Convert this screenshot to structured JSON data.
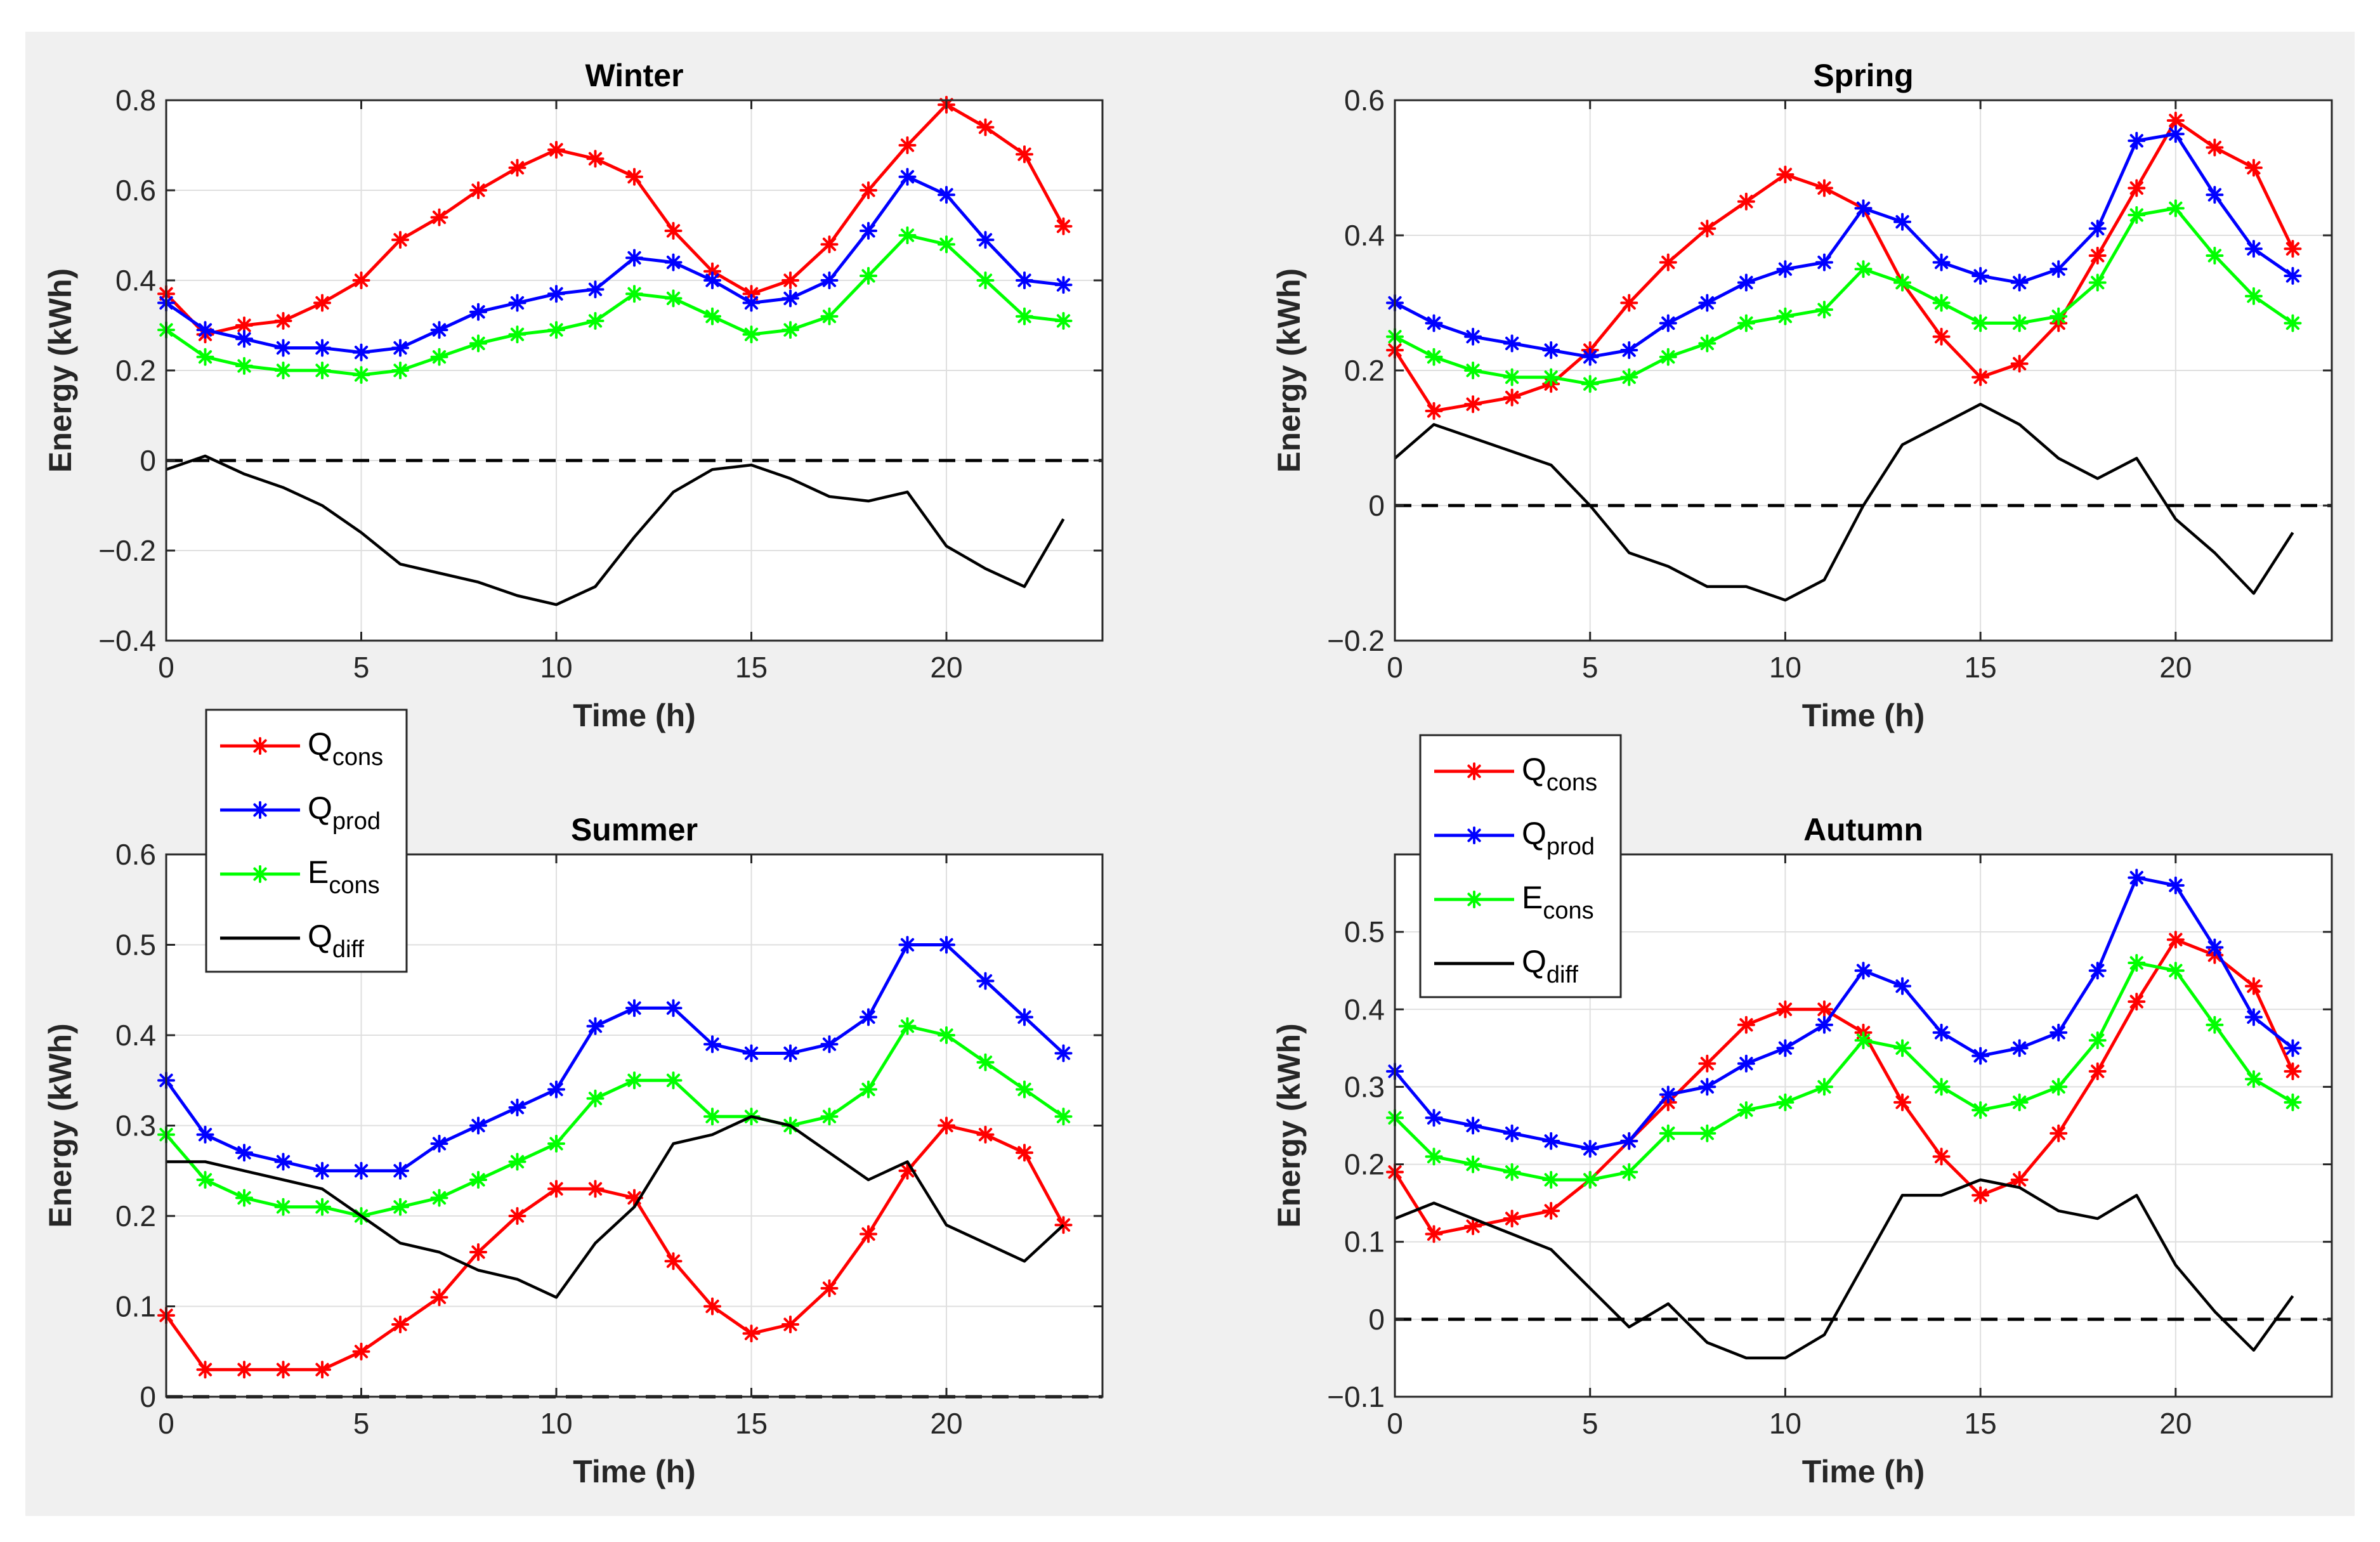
{
  "chart_data": [
    {
      "type": "line",
      "title": "Winter",
      "xlabel": "Time (h)",
      "ylabel": "Energy (kWh)",
      "xlim": [
        0,
        24
      ],
      "ylim": [
        -0.4,
        0.8
      ],
      "xticks": [
        0,
        5,
        10,
        15,
        20
      ],
      "yticks": [
        -0.4,
        -0.2,
        0,
        0.2,
        0.4,
        0.6,
        0.8
      ],
      "ytick_labels": [
        "−0.4",
        "−0.2",
        "0",
        "0.2",
        "0.4",
        "0.6",
        "0.8"
      ],
      "grid": true,
      "zero_line": true,
      "legend": null,
      "x": [
        0,
        1,
        2,
        3,
        4,
        5,
        6,
        7,
        8,
        9,
        10,
        11,
        12,
        13,
        14,
        15,
        16,
        17,
        18,
        19,
        20,
        21,
        22,
        23
      ],
      "series": [
        {
          "name": "Qcons",
          "color": "#ff0000",
          "marker": "asterisk",
          "values": [
            0.37,
            0.28,
            0.3,
            0.31,
            0.35,
            0.4,
            0.49,
            0.54,
            0.6,
            0.65,
            0.69,
            0.67,
            0.63,
            0.51,
            0.42,
            0.37,
            0.4,
            0.48,
            0.6,
            0.7,
            0.79,
            0.74,
            0.68,
            0.52
          ]
        },
        {
          "name": "Qprod",
          "color": "#0000ff",
          "marker": "asterisk",
          "values": [
            0.35,
            0.29,
            0.27,
            0.25,
            0.25,
            0.24,
            0.25,
            0.29,
            0.33,
            0.35,
            0.37,
            0.38,
            0.45,
            0.44,
            0.4,
            0.35,
            0.36,
            0.4,
            0.51,
            0.63,
            0.59,
            0.49,
            0.4,
            0.39
          ]
        },
        {
          "name": "Econs",
          "color": "#00ff00",
          "marker": "asterisk",
          "values": [
            0.29,
            0.23,
            0.21,
            0.2,
            0.2,
            0.19,
            0.2,
            0.23,
            0.26,
            0.28,
            0.29,
            0.31,
            0.37,
            0.36,
            0.32,
            0.28,
            0.29,
            0.32,
            0.41,
            0.5,
            0.48,
            0.4,
            0.32,
            0.31
          ]
        },
        {
          "name": "Qdiff",
          "color": "#000000",
          "marker": "none",
          "values": [
            -0.02,
            0.01,
            -0.03,
            -0.06,
            -0.1,
            -0.16,
            -0.23,
            -0.25,
            -0.27,
            -0.3,
            -0.32,
            -0.28,
            -0.17,
            -0.07,
            -0.02,
            -0.01,
            -0.04,
            -0.08,
            -0.09,
            -0.07,
            -0.19,
            -0.24,
            -0.28,
            -0.13
          ]
        }
      ]
    },
    {
      "type": "line",
      "title": "Spring",
      "xlabel": "Time (h)",
      "ylabel": "Energy (kWh)",
      "xlim": [
        0,
        24
      ],
      "ylim": [
        -0.2,
        0.6
      ],
      "xticks": [
        0,
        5,
        10,
        15,
        20
      ],
      "yticks": [
        -0.2,
        0,
        0.2,
        0.4,
        0.6
      ],
      "ytick_labels": [
        "−0.2",
        "0",
        "0.2",
        "0.4",
        "0.6"
      ],
      "grid": true,
      "zero_line": true,
      "legend": null,
      "x": [
        0,
        1,
        2,
        3,
        4,
        5,
        6,
        7,
        8,
        9,
        10,
        11,
        12,
        13,
        14,
        15,
        16,
        17,
        18,
        19,
        20,
        21,
        22,
        23
      ],
      "series": [
        {
          "name": "Qcons",
          "color": "#ff0000",
          "marker": "asterisk",
          "values": [
            0.23,
            0.14,
            0.15,
            0.16,
            0.18,
            0.23,
            0.3,
            0.36,
            0.41,
            0.45,
            0.49,
            0.47,
            0.44,
            0.33,
            0.25,
            0.19,
            0.21,
            0.27,
            0.37,
            0.47,
            0.57,
            0.53,
            0.5,
            0.38
          ]
        },
        {
          "name": "Qprod",
          "color": "#0000ff",
          "marker": "asterisk",
          "values": [
            0.3,
            0.27,
            0.25,
            0.24,
            0.23,
            0.22,
            0.23,
            0.27,
            0.3,
            0.33,
            0.35,
            0.36,
            0.44,
            0.42,
            0.36,
            0.34,
            0.33,
            0.35,
            0.41,
            0.54,
            0.55,
            0.46,
            0.38,
            0.34
          ]
        },
        {
          "name": "Econs",
          "color": "#00ff00",
          "marker": "asterisk",
          "values": [
            0.25,
            0.22,
            0.2,
            0.19,
            0.19,
            0.18,
            0.19,
            0.22,
            0.24,
            0.27,
            0.28,
            0.29,
            0.35,
            0.33,
            0.3,
            0.27,
            0.27,
            0.28,
            0.33,
            0.43,
            0.44,
            0.37,
            0.31,
            0.27
          ]
        },
        {
          "name": "Qdiff",
          "color": "#000000",
          "marker": "none",
          "values": [
            0.07,
            0.12,
            0.1,
            0.08,
            0.06,
            0.0,
            -0.07,
            -0.09,
            -0.12,
            -0.12,
            -0.14,
            -0.11,
            0.0,
            0.09,
            0.12,
            0.15,
            0.12,
            0.07,
            0.04,
            0.07,
            -0.02,
            -0.07,
            -0.13,
            -0.04
          ]
        }
      ]
    },
    {
      "type": "line",
      "title": "Summer",
      "xlabel": "Time (h)",
      "ylabel": "Energy (kWh)",
      "xlim": [
        0,
        24
      ],
      "ylim": [
        0,
        0.6
      ],
      "xticks": [
        0,
        5,
        10,
        15,
        20
      ],
      "yticks": [
        0,
        0.1,
        0.2,
        0.3,
        0.4,
        0.5,
        0.6
      ],
      "ytick_labels": [
        "0",
        "0.1",
        "0.2",
        "0.3",
        "0.4",
        "0.5",
        "0.6"
      ],
      "grid": true,
      "zero_line": true,
      "legend": "top-left, above axes",
      "x": [
        0,
        1,
        2,
        3,
        4,
        5,
        6,
        7,
        8,
        9,
        10,
        11,
        12,
        13,
        14,
        15,
        16,
        17,
        18,
        19,
        20,
        21,
        22,
        23
      ],
      "series": [
        {
          "name": "Qcons",
          "color": "#ff0000",
          "marker": "asterisk",
          "values": [
            0.09,
            0.03,
            0.03,
            0.03,
            0.03,
            0.05,
            0.08,
            0.11,
            0.16,
            0.2,
            0.23,
            0.23,
            0.22,
            0.15,
            0.1,
            0.07,
            0.08,
            0.12,
            0.18,
            0.25,
            0.3,
            0.29,
            0.27,
            0.19
          ]
        },
        {
          "name": "Qprod",
          "color": "#0000ff",
          "marker": "asterisk",
          "values": [
            0.35,
            0.29,
            0.27,
            0.26,
            0.25,
            0.25,
            0.25,
            0.28,
            0.3,
            0.32,
            0.34,
            0.41,
            0.43,
            0.43,
            0.39,
            0.38,
            0.38,
            0.39,
            0.42,
            0.5,
            0.5,
            0.46,
            0.42,
            0.38
          ]
        },
        {
          "name": "Econs",
          "color": "#00ff00",
          "marker": "asterisk",
          "values": [
            0.29,
            0.24,
            0.22,
            0.21,
            0.21,
            0.2,
            0.21,
            0.22,
            0.24,
            0.26,
            0.28,
            0.33,
            0.35,
            0.35,
            0.31,
            0.31,
            0.3,
            0.31,
            0.34,
            0.41,
            0.4,
            0.37,
            0.34,
            0.31
          ]
        },
        {
          "name": "Qdiff",
          "color": "#000000",
          "marker": "none",
          "values": [
            0.26,
            0.26,
            0.25,
            0.24,
            0.23,
            0.2,
            0.17,
            0.16,
            0.14,
            0.13,
            0.11,
            0.17,
            0.21,
            0.28,
            0.29,
            0.31,
            0.3,
            0.27,
            0.24,
            0.26,
            0.19,
            0.17,
            0.15,
            0.19
          ]
        }
      ]
    },
    {
      "type": "line",
      "title": "Autumn",
      "xlabel": "Time (h)",
      "ylabel": "Energy (kWh)",
      "xlim": [
        0,
        24
      ],
      "ylim": [
        -0.1,
        0.6
      ],
      "xticks": [
        0,
        5,
        10,
        15,
        20
      ],
      "yticks": [
        -0.1,
        0,
        0.1,
        0.2,
        0.3,
        0.4,
        0.5
      ],
      "ytick_labels": [
        "−0.1",
        "0",
        "0.1",
        "0.2",
        "0.3",
        "0.4",
        "0.5"
      ],
      "grid": true,
      "zero_line": true,
      "legend": "top-left, above axes",
      "x": [
        0,
        1,
        2,
        3,
        4,
        5,
        6,
        7,
        8,
        9,
        10,
        11,
        12,
        13,
        14,
        15,
        16,
        17,
        18,
        19,
        20,
        21,
        22,
        23
      ],
      "series": [
        {
          "name": "Qcons",
          "color": "#ff0000",
          "marker": "asterisk",
          "values": [
            0.19,
            0.11,
            0.12,
            0.13,
            0.14,
            0.18,
            0.23,
            0.28,
            0.33,
            0.38,
            0.4,
            0.4,
            0.37,
            0.28,
            0.21,
            0.16,
            0.18,
            0.24,
            0.32,
            0.41,
            0.49,
            0.47,
            0.43,
            0.32
          ]
        },
        {
          "name": "Qprod",
          "color": "#0000ff",
          "marker": "asterisk",
          "values": [
            0.32,
            0.26,
            0.25,
            0.24,
            0.23,
            0.22,
            0.23,
            0.29,
            0.3,
            0.33,
            0.35,
            0.38,
            0.45,
            0.43,
            0.37,
            0.34,
            0.35,
            0.37,
            0.45,
            0.57,
            0.56,
            0.48,
            0.39,
            0.35
          ]
        },
        {
          "name": "Econs",
          "color": "#00ff00",
          "marker": "asterisk",
          "values": [
            0.26,
            0.21,
            0.2,
            0.19,
            0.18,
            0.18,
            0.19,
            0.24,
            0.24,
            0.27,
            0.28,
            0.3,
            0.36,
            0.35,
            0.3,
            0.27,
            0.28,
            0.3,
            0.36,
            0.46,
            0.45,
            0.38,
            0.31,
            0.28
          ]
        },
        {
          "name": "Qdiff",
          "color": "#000000",
          "marker": "none",
          "values": [
            0.13,
            0.15,
            0.13,
            0.11,
            0.09,
            0.04,
            -0.01,
            0.02,
            -0.03,
            -0.05,
            -0.05,
            -0.02,
            0.07,
            0.16,
            0.16,
            0.18,
            0.17,
            0.14,
            0.13,
            0.16,
            0.07,
            0.01,
            -0.04,
            0.03
          ]
        }
      ]
    }
  ],
  "legend": {
    "entries": [
      {
        "base": "Q",
        "sub": "cons",
        "color": "#ff0000",
        "marker": "asterisk"
      },
      {
        "base": "Q",
        "sub": "prod",
        "color": "#0000ff",
        "marker": "asterisk"
      },
      {
        "base": "E",
        "sub": "cons",
        "color": "#00ff00",
        "marker": "asterisk"
      },
      {
        "base": "Q",
        "sub": "diff",
        "color": "#000000",
        "marker": "none"
      }
    ]
  }
}
